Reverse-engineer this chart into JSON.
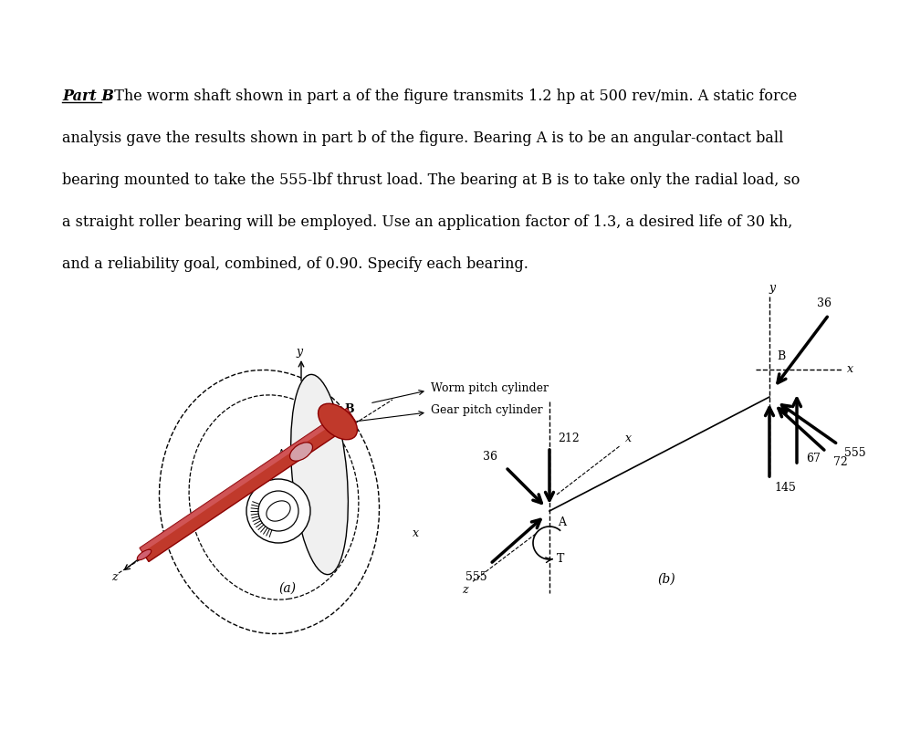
{
  "bg_color": "#ffffff",
  "text_color": "#000000",
  "shaft_color": "#c0392b",
  "shaft_color_dark": "#8b0000",
  "shaft_color_light": "#e07080",
  "fig_a_label": "(a)",
  "fig_b_label": "(b)",
  "worm_label": "Worm pitch cylinder",
  "gear_label": "Gear pitch cylinder",
  "top_line1_bold": "Part B",
  "top_line1_rest": ". The worm shaft shown in part a of the figure transmits 1.2 hp at 500 rev/min. A static force",
  "top_line2": "analysis gave the results shown in part b of the figure. Bearing A is to be an angular-contact ball",
  "top_line3": "bearing mounted to take the 555-lbf thrust load. The bearing at B is to take only the radial load, so",
  "top_line4": "a straight roller bearing will be employed. Use an application factor of 1.3, a desired life of 30 kh,",
  "top_line5": "and a reliability goal, combined, of 0.90. Specify each bearing.",
  "v212": "212",
  "v36a": "36",
  "v555a": "555",
  "v36b": "36",
  "v67": "67",
  "v555b": "555",
  "v72": "72",
  "v145": "145",
  "vT": "T",
  "vA": "A",
  "vB": "B",
  "vy": "y",
  "vx": "x",
  "vz": "z"
}
